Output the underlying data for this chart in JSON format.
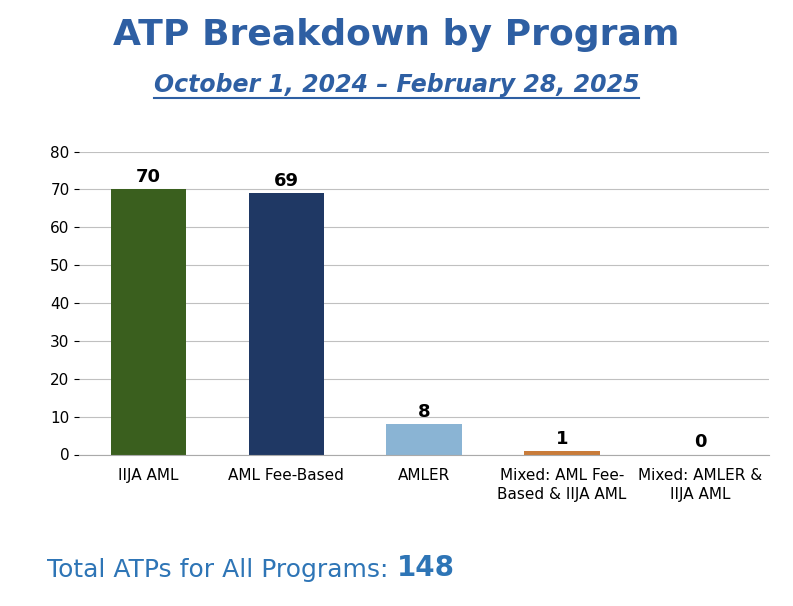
{
  "title": "ATP Breakdown by Program",
  "subtitle": "October 1, 2024 – February 28, 2025",
  "categories": [
    "IIJA AML",
    "AML Fee-Based",
    "AMLER",
    "Mixed: AML Fee-\nBased & IIJA AML",
    "Mixed: AMLER &\nIIJA AML"
  ],
  "values": [
    70,
    69,
    8,
    1,
    0
  ],
  "bar_colors": [
    "#3a5f1e",
    "#1f3864",
    "#8ab4d4",
    "#c97c3a",
    "#c97c3a"
  ],
  "title_color": "#2e5fa3",
  "subtitle_color": "#2e5fa3",
  "label_color": "#000000",
  "footer_color": "#2e75b6",
  "ylim": [
    0,
    80
  ],
  "yticks": [
    0,
    10,
    20,
    30,
    40,
    50,
    60,
    70,
    80
  ],
  "footer_regular": "Total ATPs for All Programs: ",
  "footer_bold": "148",
  "background_color": "#ffffff",
  "grid_color": "#c0c0c0",
  "title_fontsize": 26,
  "subtitle_fontsize": 17,
  "bar_label_fontsize": 13,
  "tick_label_fontsize": 11,
  "footer_fontsize": 18,
  "footer_bold_fontsize": 20
}
